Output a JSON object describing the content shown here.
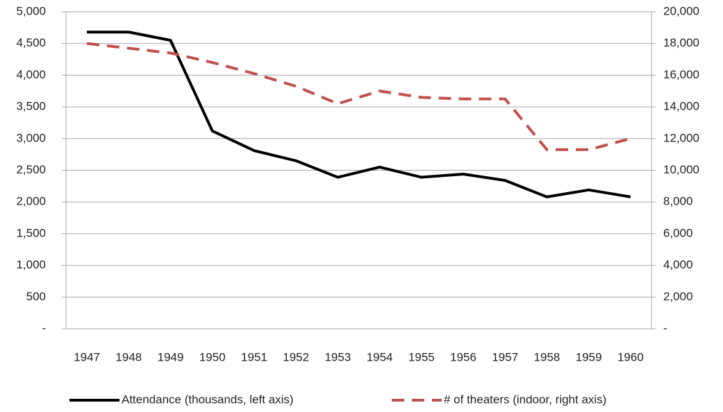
{
  "chart_data": {
    "type": "line",
    "categories": [
      "1947",
      "1948",
      "1949",
      "1950",
      "1951",
      "1952",
      "1953",
      "1954",
      "1955",
      "1956",
      "1957",
      "1958",
      "1959",
      "1960"
    ],
    "series": [
      {
        "name": "Attendance (thousands, left axis)",
        "color": "#000000",
        "dash": "solid",
        "values": [
          4680,
          4680,
          4550,
          3120,
          2810,
          2650,
          2390,
          2550,
          2390,
          2440,
          2340,
          2080,
          2190,
          2080
        ]
      },
      {
        "name": "# of theaters (indoor, right axis)",
        "color": "#c0504d",
        "dash": "dashed",
        "axis": "y2",
        "values": [
          18000,
          17700,
          17400,
          16800,
          16100,
          15300,
          14200,
          15000,
          14600,
          14500,
          14500,
          11300,
          11300,
          12000
        ]
      }
    ],
    "ylim": [
      0,
      5000
    ],
    "yticks": [
      {
        "value": 0,
        "label": "-"
      },
      500,
      {
        "value": 1000,
        "label": "1,000"
      },
      {
        "value": 1500,
        "label": "1,500"
      },
      {
        "value": 2000,
        "label": "2,000"
      },
      {
        "value": 2500,
        "label": "2,500"
      },
      {
        "value": 3000,
        "label": "3,000"
      },
      {
        "value": 3500,
        "label": "3,500"
      },
      {
        "value": 4000,
        "label": "4,000"
      },
      {
        "value": 4500,
        "label": "4,500"
      },
      {
        "value": 5000,
        "label": "5,000"
      }
    ],
    "y2lim": [
      0,
      20000
    ],
    "y2ticks": [
      {
        "value": 0,
        "label": "-"
      },
      {
        "value": 2000,
        "label": "2,000"
      },
      {
        "value": 4000,
        "label": "4,000"
      },
      {
        "value": 6000,
        "label": "6,000"
      },
      {
        "value": 8000,
        "label": "8,000"
      },
      {
        "value": 10000,
        "label": "10,000"
      },
      {
        "value": 12000,
        "label": "12,000"
      },
      {
        "value": 14000,
        "label": "14,000"
      },
      {
        "value": 16000,
        "label": "16,000"
      },
      {
        "value": 18000,
        "label": "18,000"
      },
      {
        "value": 20000,
        "label": "20,000"
      }
    ],
    "grid": true,
    "legend": "bottom"
  }
}
